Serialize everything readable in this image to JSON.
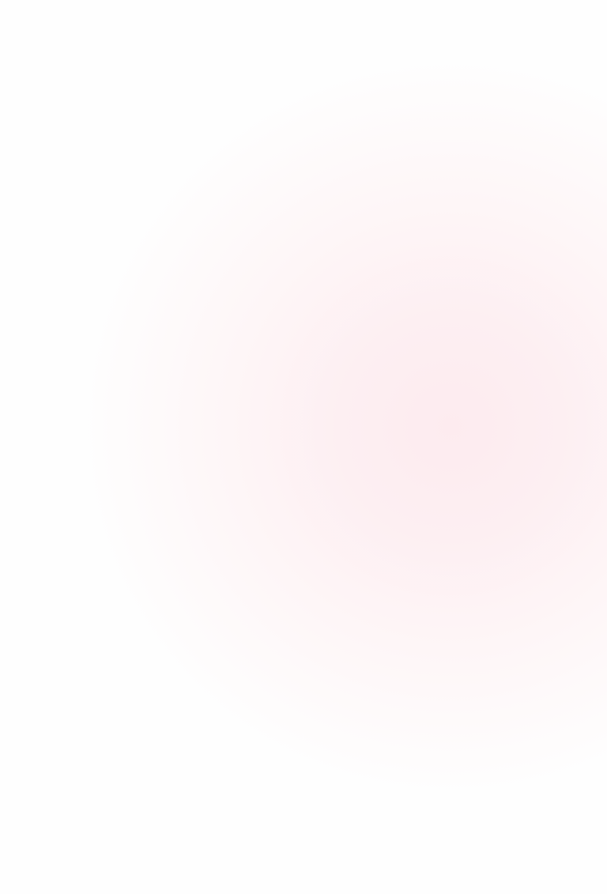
{
  "colors": {
    "background": "#fefefe",
    "glow": "#fff1f3"
  }
}
